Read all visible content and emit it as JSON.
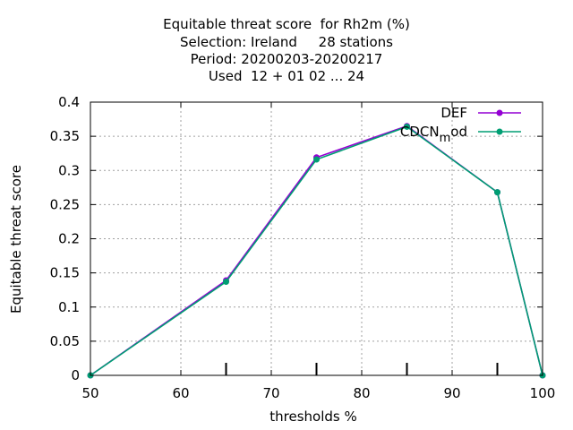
{
  "title_lines": [
    "Equitable threat score  for Rh2m (%)",
    "Selection: Ireland     28 stations",
    "Period: 20200203-20200217",
    "Used  12 + 01 02 ... 24"
  ],
  "chart_data": {
    "type": "line",
    "title": "Equitable threat score  for Rh2m (%)",
    "xlabel": "thresholds %",
    "ylabel": "Equitable threat score",
    "xlim": [
      50,
      100
    ],
    "ylim": [
      0,
      0.4
    ],
    "xticks": [
      50,
      60,
      70,
      80,
      90,
      100
    ],
    "yticks": [
      0,
      0.05,
      0.1,
      0.15,
      0.2,
      0.25,
      0.3,
      0.35,
      0.4
    ],
    "xtick_labels": [
      "50",
      "60",
      "70",
      "80",
      "90",
      "100"
    ],
    "ytick_labels": [
      "0",
      "0.05",
      "0.1",
      "0.15",
      "0.2",
      "0.25",
      "0.3",
      "0.35",
      "0.4"
    ],
    "grid": true,
    "legend_position": "top-right",
    "series": [
      {
        "name": "DEF",
        "color": "#9400d3",
        "marker": "filled-circle",
        "x": [
          50,
          65,
          75,
          85,
          95,
          100
        ],
        "y": [
          0,
          0.139,
          0.319,
          0.365,
          0.268,
          0
        ]
      },
      {
        "name": "CDCN_mod",
        "color": "#009e73",
        "marker": "filled-circle",
        "x": [
          50,
          65,
          75,
          85,
          95,
          100
        ],
        "y": [
          0,
          0.137,
          0.316,
          0.364,
          0.268,
          0
        ]
      }
    ]
  }
}
